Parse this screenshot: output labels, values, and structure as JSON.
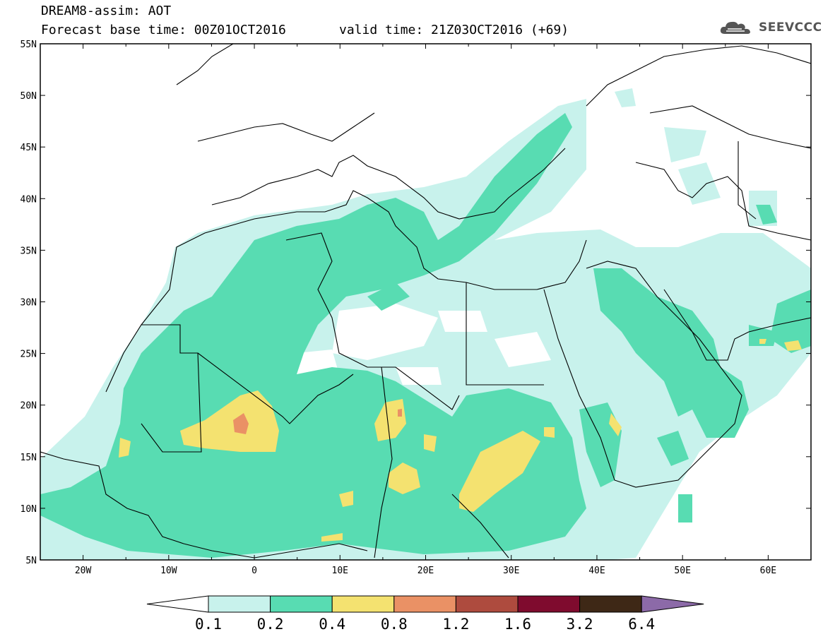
{
  "header": {
    "title": "DREAM8-assim: AOT",
    "base_time": "Forecast base time: 00Z01OCT2016",
    "valid_time": "valid time: 21Z03OCT2016 (+69)"
  },
  "logo": {
    "text": "SEEVCCC",
    "icon": "cloud-icon"
  },
  "map": {
    "lon_range": [
      -25,
      65
    ],
    "lat_range": [
      5,
      55
    ],
    "lon_ticks": [
      {
        "value": -20,
        "label": "20W"
      },
      {
        "value": -10,
        "label": "10W"
      },
      {
        "value": 0,
        "label": "0"
      },
      {
        "value": 10,
        "label": "10E"
      },
      {
        "value": 20,
        "label": "20E"
      },
      {
        "value": 30,
        "label": "30E"
      },
      {
        "value": 40,
        "label": "40E"
      },
      {
        "value": 50,
        "label": "50E"
      },
      {
        "value": 60,
        "label": "60E"
      }
    ],
    "lat_ticks": [
      {
        "value": 55,
        "label": "55N"
      },
      {
        "value": 50,
        "label": "50N"
      },
      {
        "value": 45,
        "label": "45N"
      },
      {
        "value": 40,
        "label": "40N"
      },
      {
        "value": 35,
        "label": "35N"
      },
      {
        "value": 30,
        "label": "30N"
      },
      {
        "value": 25,
        "label": "25N"
      },
      {
        "value": 20,
        "label": "20N"
      },
      {
        "value": 15,
        "label": "15N"
      },
      {
        "value": 10,
        "label": "10N"
      },
      {
        "value": 5,
        "label": "5N"
      }
    ]
  },
  "colorbar": {
    "labels": [
      "0.1",
      "0.2",
      "0.4",
      "0.8",
      "1.2",
      "1.6",
      "3.2",
      "6.4"
    ],
    "colors": [
      "#ffffff",
      "#c8f2ec",
      "#58dcb2",
      "#f4e270",
      "#ea9165",
      "#ae4b3e",
      "#7f0b2e",
      "#3e2816",
      "#8c6aa8"
    ]
  }
}
